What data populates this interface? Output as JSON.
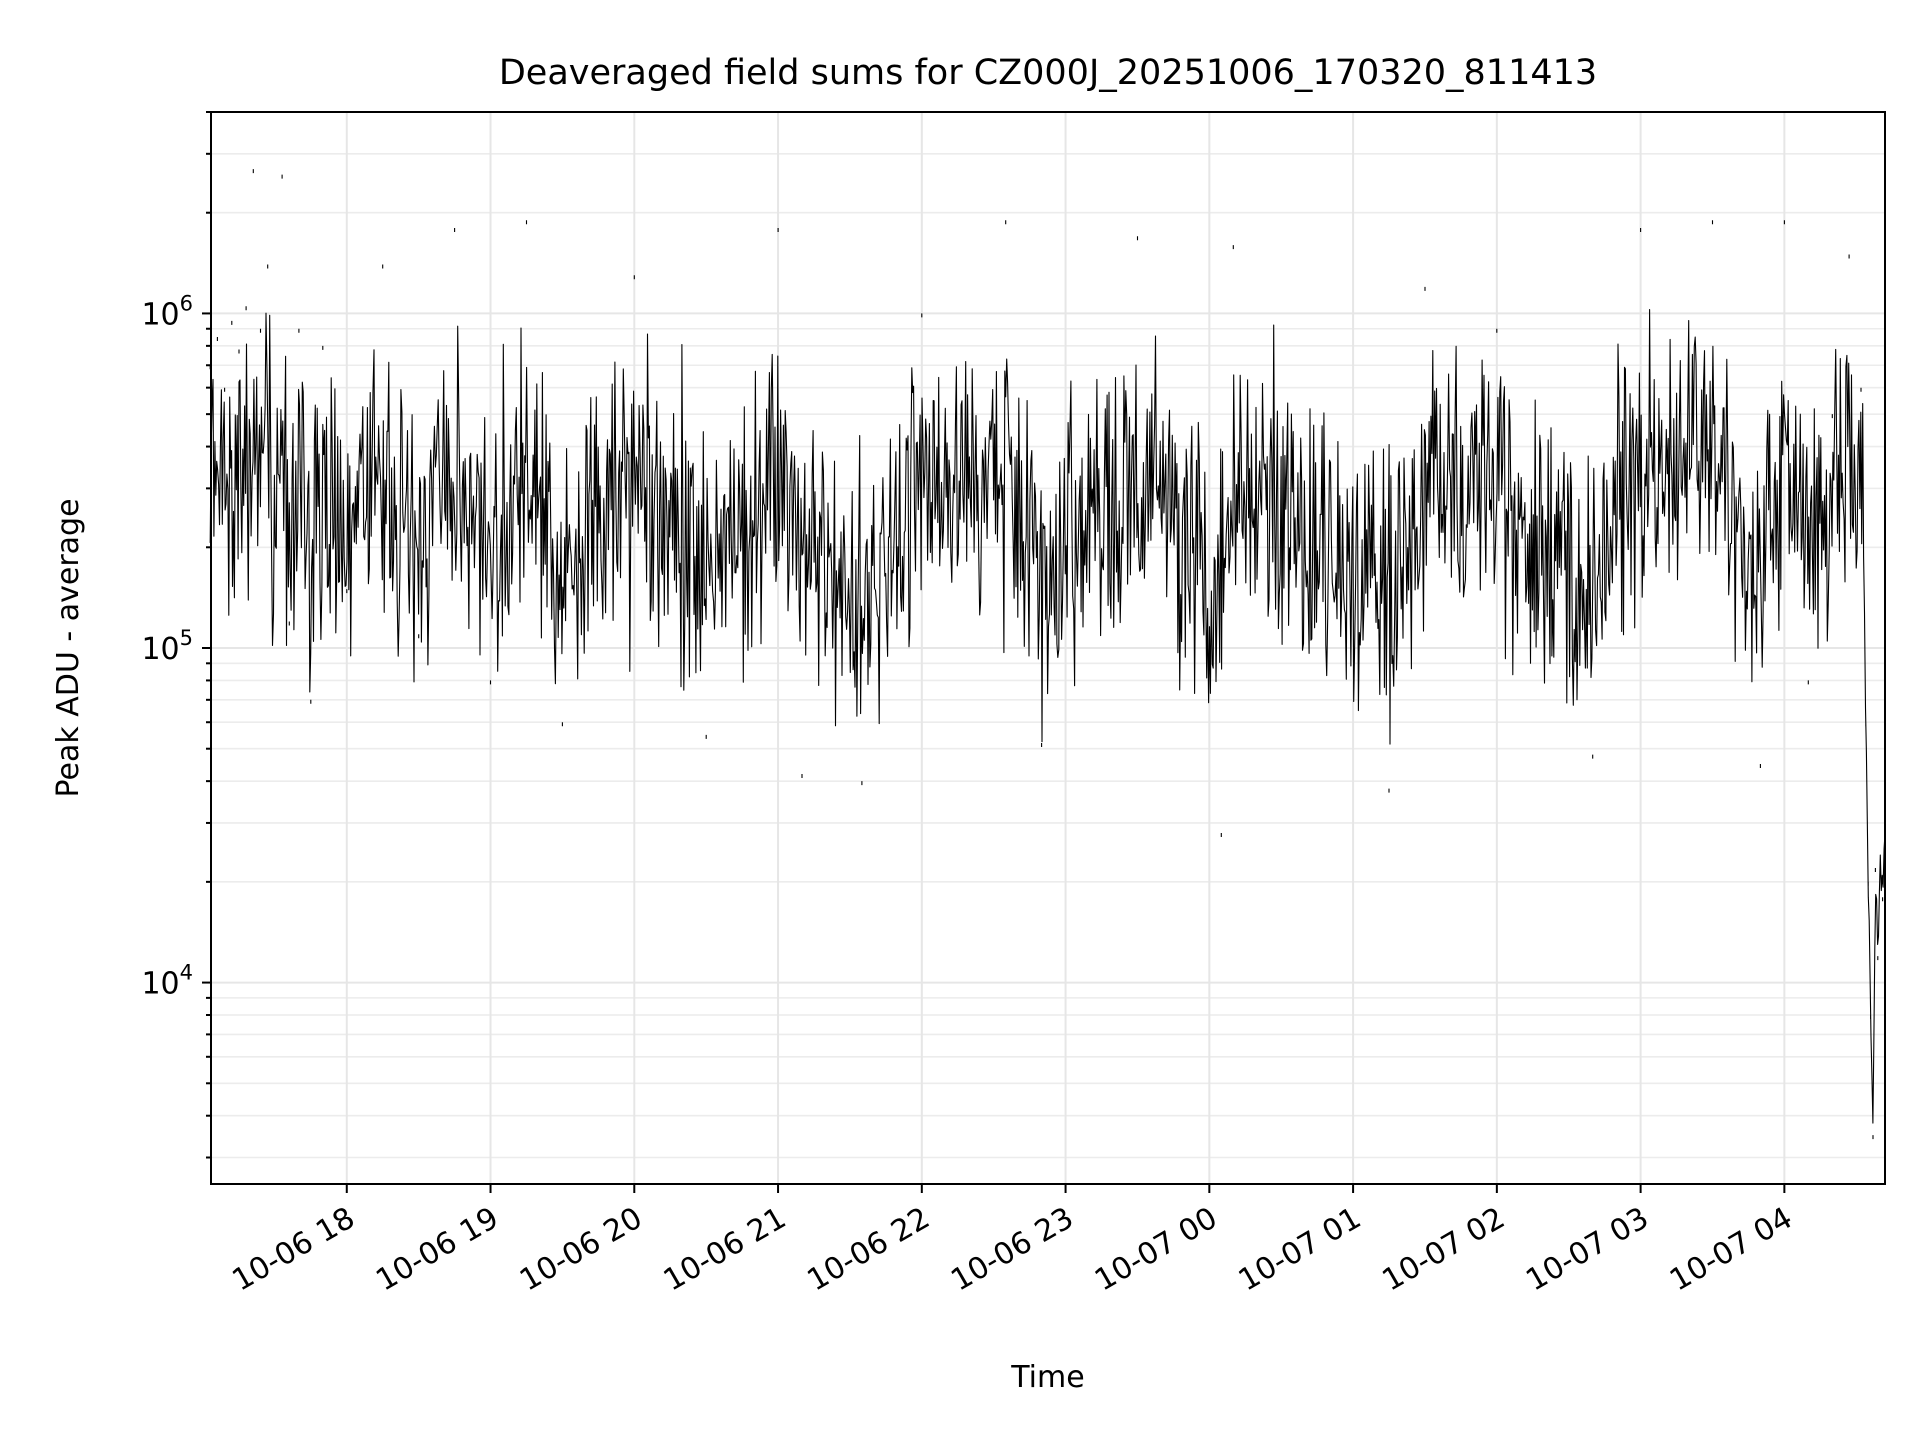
{
  "chart_data": {
    "type": "line",
    "title": "Deaveraged field sums for CZ000J_20251006_170320_811413",
    "xlabel": "Time",
    "ylabel": "Peak ADU - average",
    "y_scale": "log",
    "ylim": [
      2500,
      4000000
    ],
    "xlim": [
      "2025-10-06 17:03:20",
      "2025-10-07 04:42:00"
    ],
    "grid": true,
    "line_color": "#000000",
    "x_ticks": [
      {
        "label": "10-06 18",
        "time": "2025-10-06 18:00"
      },
      {
        "label": "10-06 19",
        "time": "2025-10-06 19:00"
      },
      {
        "label": "10-06 20",
        "time": "2025-10-06 20:00"
      },
      {
        "label": "10-06 21",
        "time": "2025-10-06 21:00"
      },
      {
        "label": "10-06 22",
        "time": "2025-10-06 22:00"
      },
      {
        "label": "10-06 23",
        "time": "2025-10-06 23:00"
      },
      {
        "label": "10-07 00",
        "time": "2025-10-07 00:00"
      },
      {
        "label": "10-07 01",
        "time": "2025-10-07 01:00"
      },
      {
        "label": "10-07 02",
        "time": "2025-10-07 02:00"
      },
      {
        "label": "10-07 03",
        "time": "2025-10-07 03:00"
      },
      {
        "label": "10-07 04",
        "time": "2025-10-07 04:00"
      }
    ],
    "y_ticks": [
      {
        "base": "10",
        "exp": "4",
        "value": 10000
      },
      {
        "base": "10",
        "exp": "5",
        "value": 100000
      },
      {
        "base": "10",
        "exp": "6",
        "value": 1000000
      }
    ],
    "series": [
      {
        "values_description_free": true,
        "points": [
          [
            "2025-10-06 17:03",
            700000
          ],
          [
            "2025-10-06 17:06",
            850000
          ],
          [
            "2025-10-06 17:09",
            600000
          ],
          [
            "2025-10-06 17:12",
            950000
          ],
          [
            "2025-10-06 17:15",
            780000
          ],
          [
            "2025-10-06 17:18",
            1050000
          ],
          [
            "2025-10-06 17:21",
            2700000
          ],
          [
            "2025-10-06 17:24",
            900000
          ],
          [
            "2025-10-06 17:27",
            1400000
          ],
          [
            "2025-10-06 17:30",
            250000
          ],
          [
            "2025-10-06 17:33",
            2600000
          ],
          [
            "2025-10-06 17:36",
            120000
          ],
          [
            "2025-10-06 17:40",
            900000
          ],
          [
            "2025-10-06 17:45",
            70000
          ],
          [
            "2025-10-06 17:50",
            800000
          ],
          [
            "2025-10-06 18:00",
            150000
          ],
          [
            "2025-10-06 18:15",
            1400000
          ],
          [
            "2025-10-06 18:30",
            110000
          ],
          [
            "2025-10-06 18:45",
            1800000
          ],
          [
            "2025-10-06 19:00",
            80000
          ],
          [
            "2025-10-06 19:15",
            1900000
          ],
          [
            "2025-10-06 19:30",
            60000
          ],
          [
            "2025-10-06 20:00",
            1300000
          ],
          [
            "2025-10-06 20:30",
            55000
          ],
          [
            "2025-10-06 21:00",
            1800000
          ],
          [
            "2025-10-06 21:10",
            42000
          ],
          [
            "2025-10-06 21:35",
            40000
          ],
          [
            "2025-10-06 22:00",
            1000000
          ],
          [
            "2025-10-06 22:35",
            1900000
          ],
          [
            "2025-10-06 22:50",
            52000
          ],
          [
            "2025-10-06 23:30",
            1700000
          ],
          [
            "2025-10-07 00:05",
            28000
          ],
          [
            "2025-10-07 00:10",
            1600000
          ],
          [
            "2025-10-07 01:15",
            38000
          ],
          [
            "2025-10-07 01:30",
            1200000
          ],
          [
            "2025-10-07 02:00",
            900000
          ],
          [
            "2025-10-07 02:40",
            48000
          ],
          [
            "2025-10-07 03:00",
            1800000
          ],
          [
            "2025-10-07 03:30",
            1900000
          ],
          [
            "2025-10-07 03:50",
            45000
          ],
          [
            "2025-10-07 04:00",
            1900000
          ],
          [
            "2025-10-07 04:10",
            80000
          ],
          [
            "2025-10-07 04:20",
            500000
          ],
          [
            "2025-10-07 04:27",
            1500000
          ],
          [
            "2025-10-07 04:32",
            600000
          ],
          [
            "2025-10-07 04:34",
            60000
          ],
          [
            "2025-10-07 04:35",
            20000
          ],
          [
            "2025-10-07 04:36",
            8000
          ],
          [
            "2025-10-07 04:37",
            3500
          ],
          [
            "2025-10-07 04:38",
            22000
          ],
          [
            "2025-10-07 04:39",
            12000
          ],
          [
            "2025-10-07 04:40",
            22000
          ],
          [
            "2025-10-07 04:41",
            18000
          ],
          [
            "2025-10-07 04:42",
            25000
          ]
        ]
      }
    ]
  }
}
